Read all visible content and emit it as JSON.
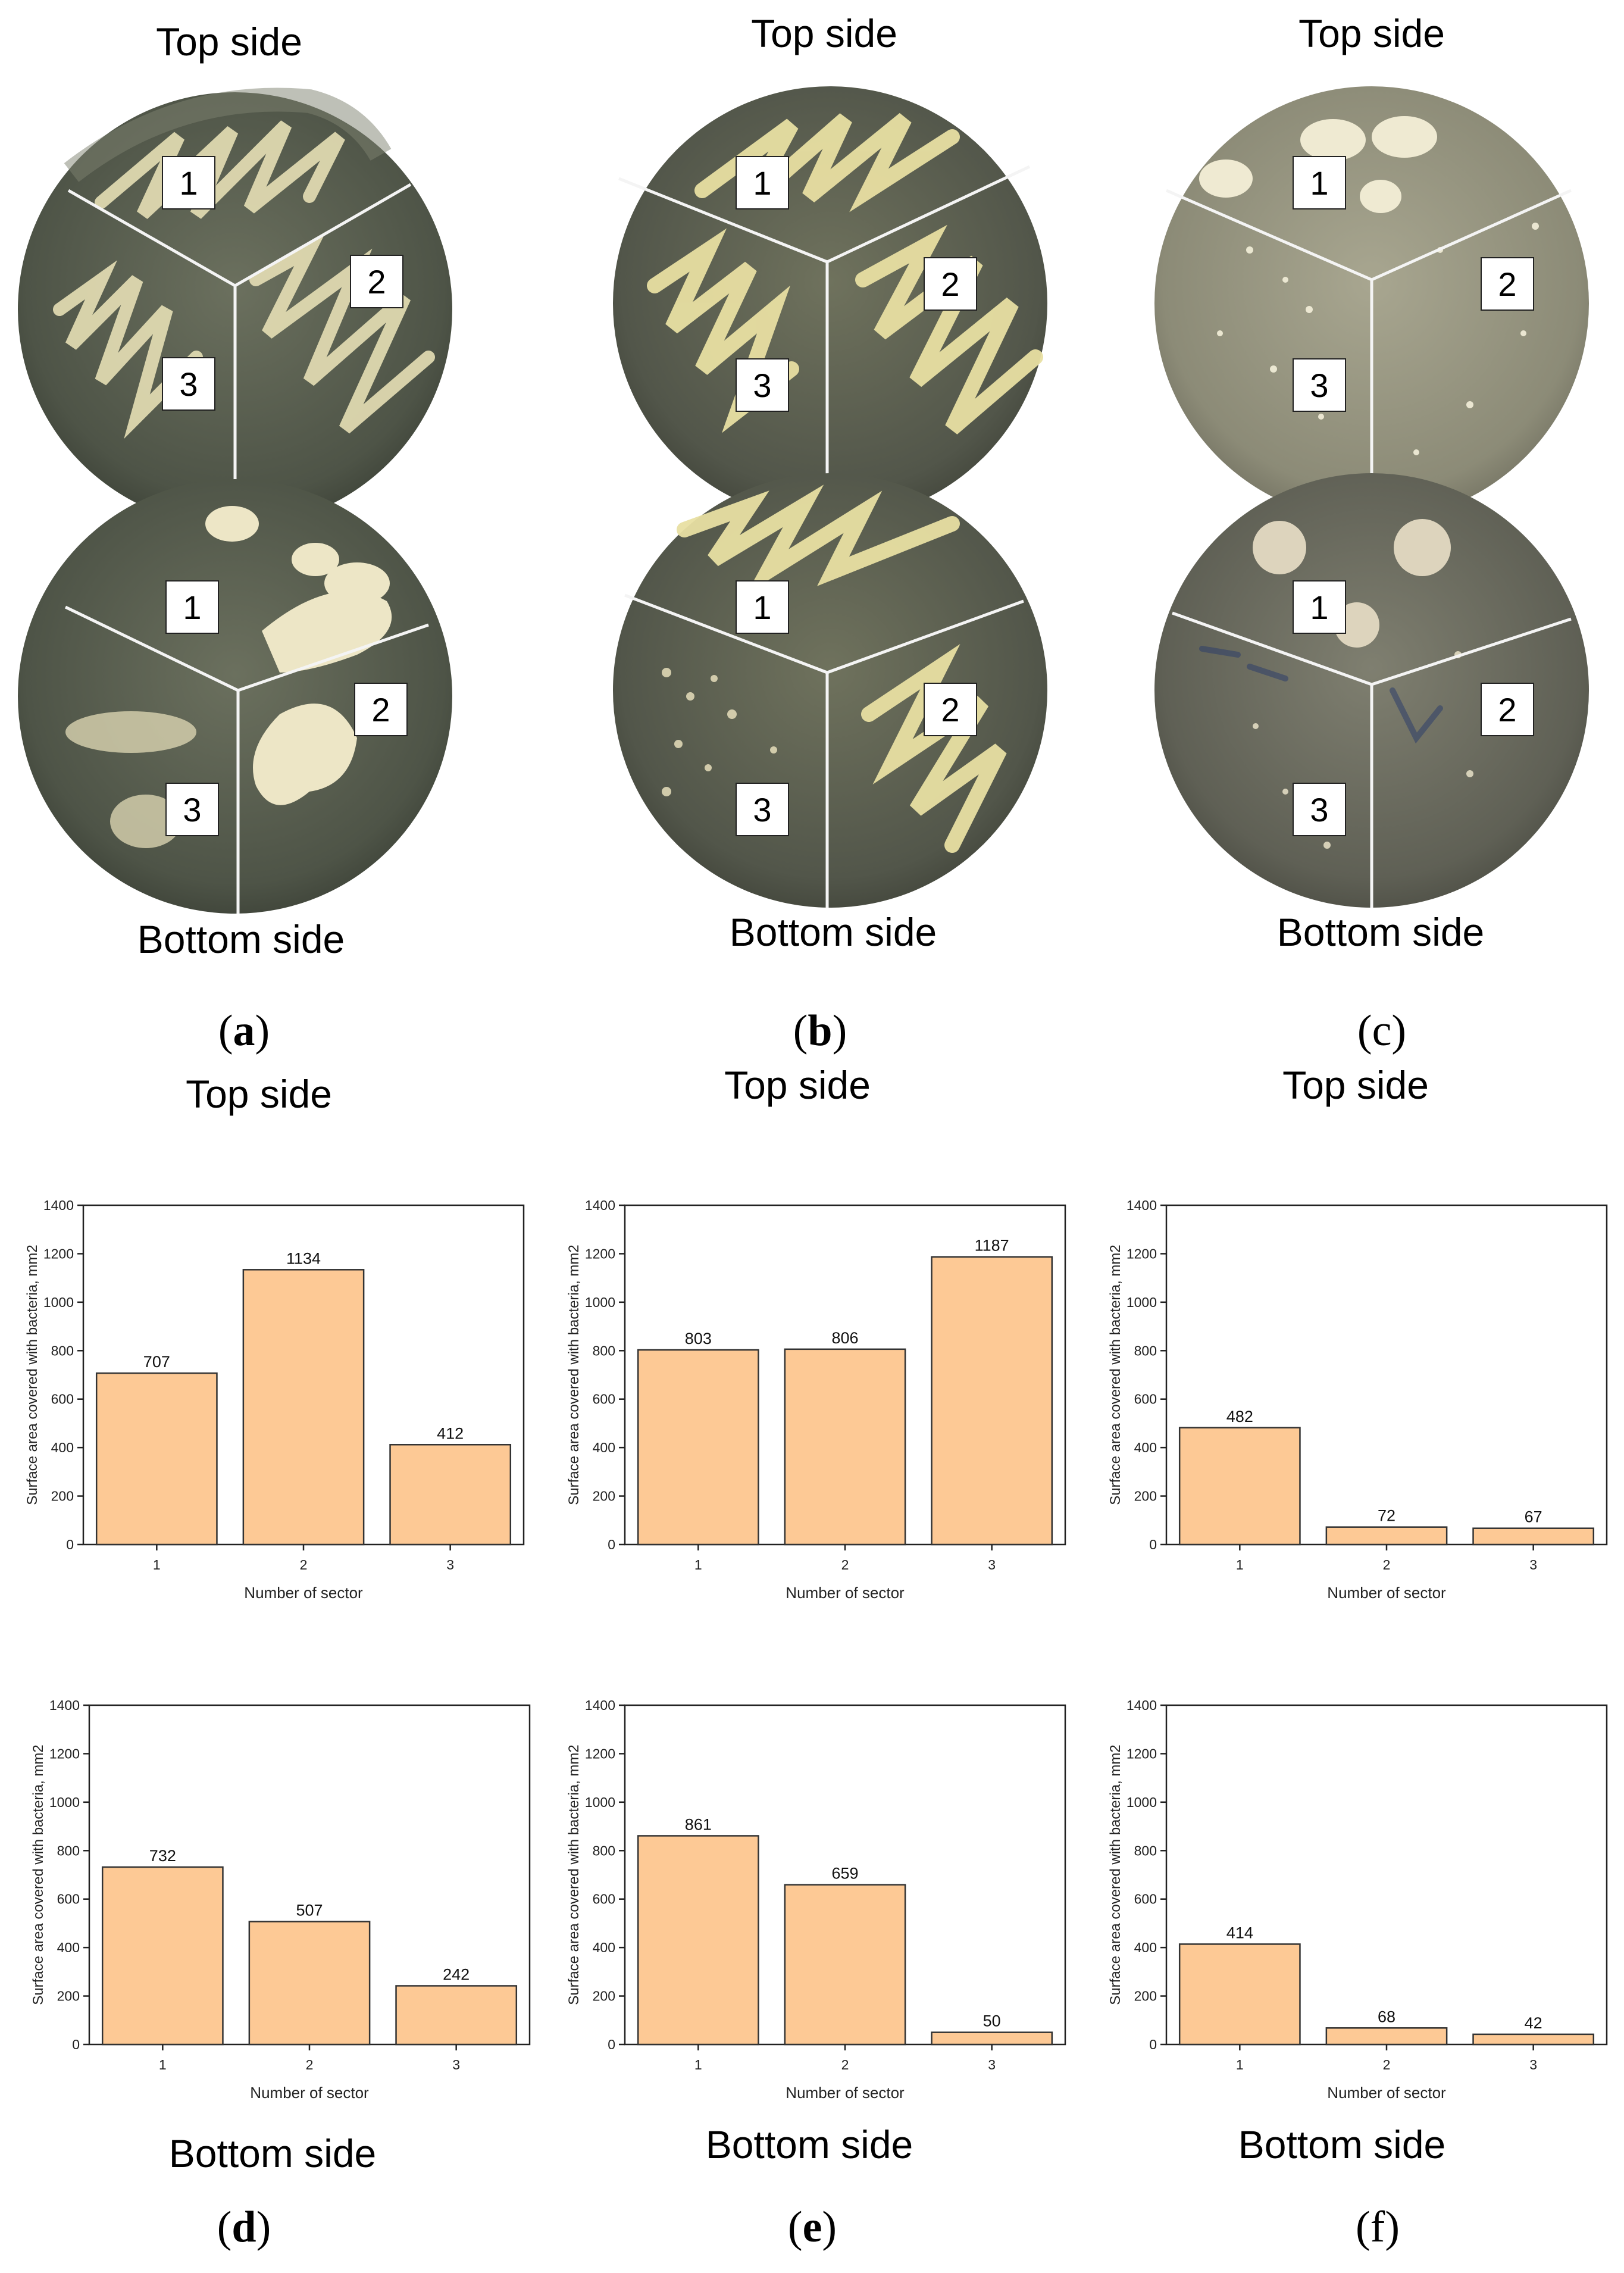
{
  "plates": [
    {
      "panel": "a",
      "top_label": "Top side",
      "bottom_label": "Bottom side",
      "sectors": [
        "1",
        "2",
        "3"
      ]
    },
    {
      "panel": "b",
      "top_label": "Top side",
      "bottom_label": "Bottom side",
      "sectors": [
        "1",
        "2",
        "3"
      ]
    },
    {
      "panel": "c",
      "top_label": "Top side",
      "bottom_label": "Bottom side",
      "sectors": [
        "1",
        "2",
        "3"
      ]
    }
  ],
  "panel_letters": {
    "a": "a",
    "b": "b",
    "c": "c",
    "d": "d",
    "e": "e",
    "f": "f"
  },
  "chart_headers": {
    "top": [
      "Top side",
      "Top side",
      "Top side"
    ],
    "bottom": [
      "Bottom side",
      "Bottom side",
      "Bottom side"
    ]
  },
  "colors": {
    "bar_fill": "#FDC995",
    "bar_stroke": "#333333",
    "petri_agar": "#C7C1A0",
    "petri_dark": "#5A5F50",
    "colony": "#EDE6BE"
  },
  "chart_data": [
    {
      "type": "bar",
      "panel": "d-top-a",
      "categories": [
        "1",
        "2",
        "3"
      ],
      "values": [
        707,
        1134,
        412
      ],
      "xlabel": "Number of sector",
      "ylabel": "Surface area covered with bacteria, mm2",
      "ylim": [
        0,
        1400
      ],
      "yticks": [
        "0",
        "200",
        "400",
        "600",
        "800",
        "1000",
        "1200",
        "1400"
      ]
    },
    {
      "type": "bar",
      "panel": "e-top-b",
      "categories": [
        "1",
        "2",
        "3"
      ],
      "values": [
        803,
        806,
        1187
      ],
      "xlabel": "Number of sector",
      "ylabel": "Surface area covered with bacteria, mm2",
      "ylim": [
        0,
        1400
      ],
      "yticks": [
        "0",
        "200",
        "400",
        "600",
        "800",
        "1000",
        "1200",
        "1400"
      ]
    },
    {
      "type": "bar",
      "panel": "f-top-c",
      "categories": [
        "1",
        "2",
        "3"
      ],
      "values": [
        482,
        72,
        67
      ],
      "xlabel": "Number of sector",
      "ylabel": "Surface area covered with bacteria, mm2",
      "ylim": [
        0,
        1400
      ],
      "yticks": [
        "0",
        "200",
        "400",
        "600",
        "800",
        "1000",
        "1200",
        "1400"
      ]
    },
    {
      "type": "bar",
      "panel": "d-bottom",
      "categories": [
        "1",
        "2",
        "3"
      ],
      "values": [
        732,
        507,
        242
      ],
      "xlabel": "Number of sector",
      "ylabel": "Surface area covered with bacteria, mm2",
      "ylim": [
        0,
        1400
      ],
      "yticks": [
        "0",
        "200",
        "400",
        "600",
        "800",
        "1000",
        "1200",
        "1400"
      ]
    },
    {
      "type": "bar",
      "panel": "e-bottom",
      "categories": [
        "1",
        "2",
        "3"
      ],
      "values": [
        861,
        659,
        50
      ],
      "xlabel": "Number of sector",
      "ylabel": "Surface area covered with bacteria, mm2",
      "ylim": [
        0,
        1400
      ],
      "yticks": [
        "0",
        "200",
        "400",
        "600",
        "800",
        "1000",
        "1200",
        "1400"
      ]
    },
    {
      "type": "bar",
      "panel": "f-bottom",
      "categories": [
        "1",
        "2",
        "3"
      ],
      "values": [
        414,
        68,
        42
      ],
      "xlabel": "Number of sector",
      "ylabel": "Surface area covered with bacteria, mm2",
      "ylim": [
        0,
        1400
      ],
      "yticks": [
        "0",
        "200",
        "400",
        "600",
        "800",
        "1000",
        "1200",
        "1400"
      ]
    }
  ]
}
